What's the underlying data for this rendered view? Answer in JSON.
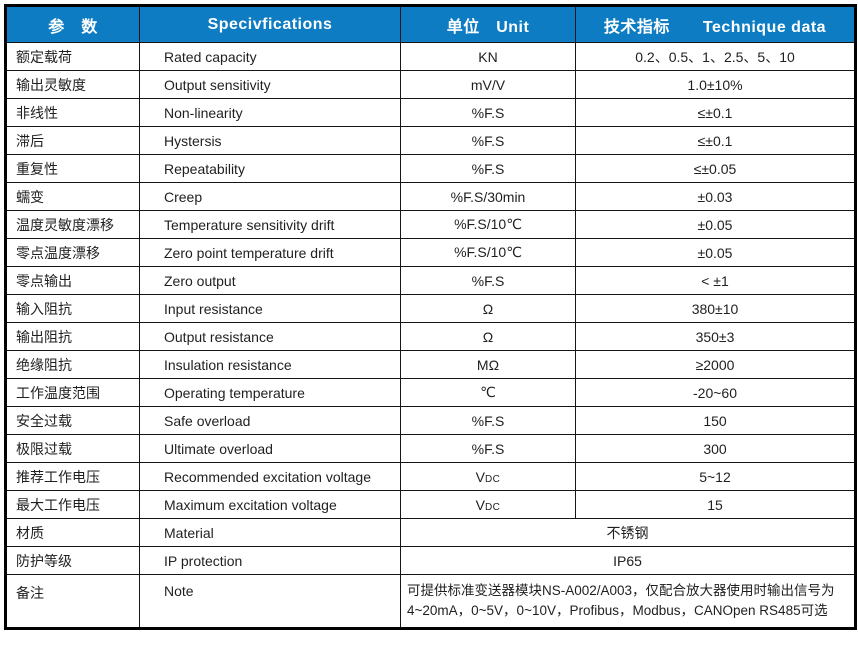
{
  "colors": {
    "header_bg": "#0d7cc2",
    "header_text": "#ffffff",
    "border": "#161616",
    "body_text": "#1f1f1f"
  },
  "table": {
    "header": {
      "col_param": "参　数",
      "col_spec": "Specivfications",
      "col_unit": "单位　Unit",
      "col_data": "技术指标　　Technique data"
    },
    "rows": [
      {
        "param": "额定载荷",
        "spec": "Rated capacity",
        "unit": "KN",
        "value": "0.2、0.5、1、2.5、5、10"
      },
      {
        "param": "输出灵敏度",
        "spec": "Output sensitivity",
        "unit": "mV/V",
        "value": "1.0±10%"
      },
      {
        "param": "非线性",
        "spec": "Non-linearity",
        "unit": "%F.S",
        "value": "≤±0.1"
      },
      {
        "param": "滞后",
        "spec": "Hystersis",
        "unit": "%F.S",
        "value": "≤±0.1"
      },
      {
        "param": "重复性",
        "spec": "Repeatability",
        "unit": "%F.S",
        "value": "≤±0.05"
      },
      {
        "param": "蠕变",
        "spec": "Creep",
        "unit": "%F.S/30min",
        "value": "±0.03"
      },
      {
        "param": "温度灵敏度漂移",
        "spec": "Temperature sensitivity drift",
        "unit": "%F.S/10℃",
        "value": "±0.05"
      },
      {
        "param": "零点温度漂移",
        "spec": "Zero point temperature drift",
        "unit": "%F.S/10℃",
        "value": "±0.05"
      },
      {
        "param": "零点输出",
        "spec": "Zero output",
        "unit": "%F.S",
        "value": "< ±1"
      },
      {
        "param": "输入阻抗",
        "spec": "Input resistance",
        "unit": "Ω",
        "value": "380±10"
      },
      {
        "param": "输出阻抗",
        "spec": "Output resistance",
        "unit": "Ω",
        "value": "350±3"
      },
      {
        "param": "绝缘阻抗",
        "spec": "Insulation resistance",
        "unit": "MΩ",
        "value": "≥2000"
      },
      {
        "param": "工作温度范围",
        "spec": "Operating temperature",
        "unit": "℃",
        "value": "-20~60"
      },
      {
        "param": "安全过载",
        "spec": "Safe overload",
        "unit": "%F.S",
        "value": "150"
      },
      {
        "param": "极限过载",
        "spec": "Ultimate overload",
        "unit": "%F.S",
        "value": "300"
      },
      {
        "param": "推荐工作电压",
        "spec": "Recommended excitation voltage",
        "unit": "VDC",
        "value": "5~12"
      },
      {
        "param": "最大工作电压",
        "spec": "Maximum excitation voltage",
        "unit": "VDC",
        "value": "15"
      }
    ],
    "merged_rows": [
      {
        "param": "材质",
        "spec": "Material",
        "value": "不锈钢"
      },
      {
        "param": "防护等级",
        "spec": "IP protection",
        "value": "IP65"
      }
    ],
    "note_row": {
      "param": "备注",
      "spec": "Note",
      "lines": [
        "可提供标准变送器模块NS-A002/A003，仅配合放大器使用时输出信号为",
        "4~20mA，0~5V，0~10V，Profibus，Modbus，CANOpen RS485可选"
      ]
    }
  }
}
